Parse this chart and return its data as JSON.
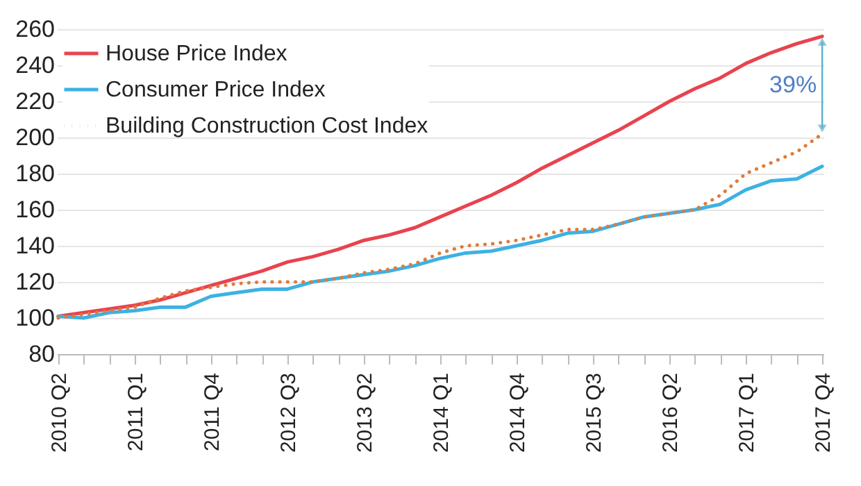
{
  "chart_data": {
    "type": "line",
    "categories": [
      "2010 Q2",
      null,
      null,
      "2011 Q1",
      null,
      null,
      "2011 Q4",
      null,
      null,
      "2012 Q3",
      null,
      null,
      "2013 Q2",
      null,
      null,
      "2014 Q1",
      null,
      null,
      "2014 Q4",
      null,
      null,
      "2015 Q3",
      null,
      null,
      "2016 Q2",
      null,
      null,
      "2017 Q1",
      null,
      null,
      "2017 Q4"
    ],
    "series": [
      {
        "name": "House Price Index",
        "color": "#e8434f",
        "line_style": "solid",
        "values": [
          101,
          103,
          105,
          107,
          110,
          114,
          118,
          122,
          126,
          131,
          134,
          138,
          143,
          146,
          150,
          156,
          162,
          168,
          175,
          183,
          190,
          197,
          204,
          212,
          220,
          227,
          233,
          241,
          247,
          252,
          256
        ]
      },
      {
        "name": "Consumer Price Index",
        "color": "#3db1e3",
        "line_style": "solid",
        "values": [
          101,
          100,
          103,
          104,
          106,
          106,
          112,
          114,
          116,
          116,
          120,
          122,
          124,
          126,
          129,
          133,
          136,
          137,
          140,
          143,
          147,
          148,
          152,
          156,
          158,
          160,
          163,
          171,
          176,
          177,
          184
        ]
      },
      {
        "name": "Building Construction Cost Index",
        "color": "#e07b39",
        "line_style": "dotted",
        "values": [
          100,
          102,
          104,
          106,
          111,
          115,
          117,
          119,
          120,
          120,
          120,
          122,
          125,
          127,
          130,
          136,
          140,
          141,
          143,
          146,
          149,
          149,
          152,
          156,
          158,
          160,
          168,
          180,
          186,
          192,
          202
        ]
      }
    ],
    "ylim": [
      80,
      260
    ],
    "yticks": [
      80,
      100,
      120,
      140,
      160,
      180,
      200,
      220,
      240,
      260
    ],
    "grid": "y",
    "legend": "top left",
    "annotations": [
      "39%"
    ]
  }
}
